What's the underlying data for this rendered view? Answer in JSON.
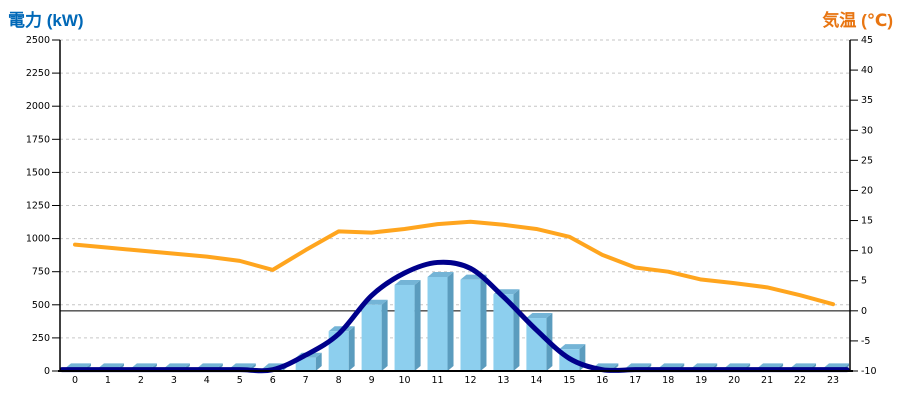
{
  "titles": {
    "left": "電力 (kW)",
    "right": "気温 (℃)"
  },
  "colors": {
    "title_left": "#0068B7",
    "title_right": "#E87511",
    "bar_front": "#8DCFEE",
    "bar_top": "#74B4D6",
    "bar_side": "#5B9CBE",
    "power_line": "#00008B",
    "temp_line": "#FFA51E",
    "grid": "#C6C6C6",
    "axis": "#000000",
    "zero_line": "#000000",
    "tick_text": "#000000"
  },
  "chart_data": {
    "type": "bar",
    "x_hours": [
      0,
      1,
      2,
      3,
      4,
      5,
      6,
      7,
      8,
      9,
      10,
      11,
      12,
      13,
      14,
      15,
      16,
      17,
      18,
      19,
      20,
      21,
      22,
      23
    ],
    "series": [
      {
        "name": "power-bars",
        "type": "bar",
        "axis": "left",
        "values": [
          20,
          20,
          20,
          20,
          20,
          20,
          20,
          100,
          300,
          500,
          650,
          710,
          690,
          580,
          400,
          165,
          20,
          20,
          20,
          20,
          20,
          20,
          20,
          20
        ]
      },
      {
        "name": "power-curve",
        "type": "line",
        "axis": "left",
        "smooth": true,
        "values": [
          10,
          10,
          10,
          10,
          10,
          10,
          10,
          120,
          280,
          570,
          740,
          820,
          775,
          560,
          310,
          95,
          10,
          10,
          10,
          10,
          10,
          10,
          10,
          10
        ]
      },
      {
        "name": "temperature",
        "type": "line",
        "axis": "right",
        "smooth": false,
        "values": [
          11,
          10.5,
          10,
          9.5,
          9,
          8.3,
          6.8,
          10.1,
          13.2,
          13,
          13.6,
          14.4,
          14.8,
          14.3,
          13.6,
          12.3,
          9.3,
          7.2,
          6.5,
          5.2,
          4.6,
          3.9,
          2.6,
          1.1
        ]
      }
    ],
    "left_axis": {
      "title": "電力 (kW)",
      "min": 0,
      "max": 2500,
      "step": 250
    },
    "right_axis": {
      "title": "気温 (℃)",
      "min": -10,
      "max": 45,
      "step": 5
    },
    "reference_line": {
      "axis": "right",
      "value": 0
    },
    "grid": "horizontal-dashed",
    "legend": "none"
  }
}
